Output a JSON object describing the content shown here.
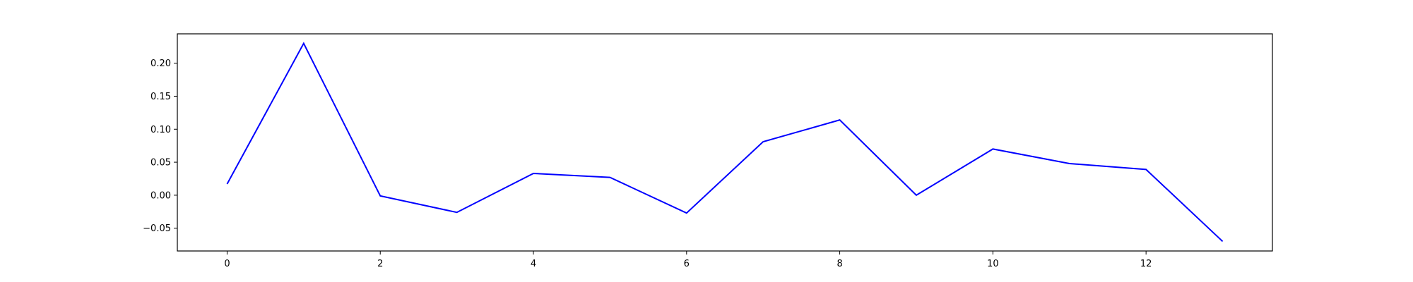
{
  "chart_data": {
    "type": "line",
    "title": "",
    "xlabel": "",
    "ylabel": "",
    "x": [
      0,
      1,
      2,
      3,
      4,
      5,
      6,
      7,
      8,
      9,
      10,
      11,
      12,
      13
    ],
    "series": [
      {
        "values": [
          0.017,
          0.23,
          -0.001,
          -0.026,
          0.033,
          0.027,
          -0.027,
          0.081,
          0.114,
          0.0,
          0.07,
          0.048,
          0.039,
          -0.07
        ],
        "color": "#0000ff"
      }
    ],
    "xlim": [
      -0.65,
      13.65
    ],
    "ylim": [
      -0.0845,
      0.2445
    ],
    "xticks": [
      0,
      2,
      4,
      6,
      8,
      10,
      12
    ],
    "xtick_labels": [
      "0",
      "2",
      "4",
      "6",
      "8",
      "10",
      "12"
    ],
    "yticks": [
      -0.05,
      0.0,
      0.05,
      0.1,
      0.15,
      0.2
    ],
    "ytick_labels": [
      "−0.05",
      "0.00",
      "0.05",
      "0.10",
      "0.15",
      "0.20"
    ],
    "grid": false,
    "legend": "none"
  }
}
